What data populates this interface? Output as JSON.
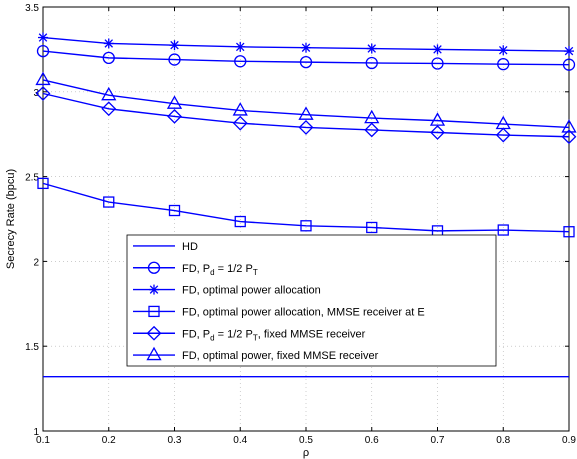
{
  "chart_data": {
    "type": "line",
    "xlabel": "ρ",
    "ylabel": "Secrecy Rate (bpcu)",
    "xlim": [
      0.1,
      0.9
    ],
    "ylim": [
      1,
      3.5
    ],
    "xticks": [
      0.1,
      0.2,
      0.3,
      0.4,
      0.5,
      0.6,
      0.7,
      0.8,
      0.9
    ],
    "yticks": [
      1,
      1.5,
      2,
      2.5,
      3,
      3.5
    ],
    "xtick_labels": [
      "0.1",
      "0.2",
      "0.3",
      "0.4",
      "0.5",
      "0.6",
      "0.7",
      "0.8",
      "0.9"
    ],
    "ytick_labels": [
      "1",
      "1.5",
      "2",
      "2.5",
      "3",
      "3.5"
    ],
    "grid": true,
    "legend_position": "lower-left (inside axes)",
    "color": "#0000ff",
    "x": [
      0.1,
      0.2,
      0.3,
      0.4,
      0.5,
      0.6,
      0.7,
      0.8,
      0.9
    ],
    "series": [
      {
        "name": "HD",
        "marker": "none",
        "values": [
          1.32,
          1.32,
          1.32,
          1.32,
          1.32,
          1.32,
          1.32,
          1.32,
          1.32
        ]
      },
      {
        "name": "FD, P_d = 1/2 P_T",
        "marker": "circle",
        "values": [
          3.24,
          3.2,
          3.19,
          3.18,
          3.175,
          3.17,
          3.167,
          3.163,
          3.16
        ]
      },
      {
        "name": "FD, optimal power allocation",
        "marker": "star",
        "values": [
          3.32,
          3.285,
          3.275,
          3.265,
          3.26,
          3.255,
          3.25,
          3.245,
          3.24
        ]
      },
      {
        "name": "FD, optimal power allocation,  MMSE receiver at E",
        "marker": "square",
        "values": [
          2.46,
          2.35,
          2.3,
          2.235,
          2.21,
          2.2,
          2.18,
          2.185,
          2.175
        ]
      },
      {
        "name": "FD, P_d = 1/2 P_T, fixed MMSE receiver",
        "marker": "diamond",
        "values": [
          2.99,
          2.9,
          2.855,
          2.815,
          2.79,
          2.775,
          2.76,
          2.745,
          2.735
        ]
      },
      {
        "name": "FD, optimal power, fixed MMSE receiver",
        "marker": "triangle",
        "values": [
          3.07,
          2.98,
          2.93,
          2.89,
          2.865,
          2.845,
          2.83,
          2.81,
          2.79
        ]
      }
    ],
    "legend": [
      {
        "label": "HD"
      },
      {
        "label": "FD, P",
        "sub": "d",
        "label_mid": " = 1/2 P",
        "sub2": "T",
        "label_end": ""
      },
      {
        "label": "FD, optimal power allocation"
      },
      {
        "label": "FD, optimal power allocation,  MMSE receiver at E"
      },
      {
        "label": "FD, P",
        "sub": "d",
        "label_mid": " = 1/2 P",
        "sub2": "T",
        "label_end": ", fixed MMSE receiver"
      },
      {
        "label": "FD, optimal power, fixed MMSE receiver"
      }
    ]
  }
}
